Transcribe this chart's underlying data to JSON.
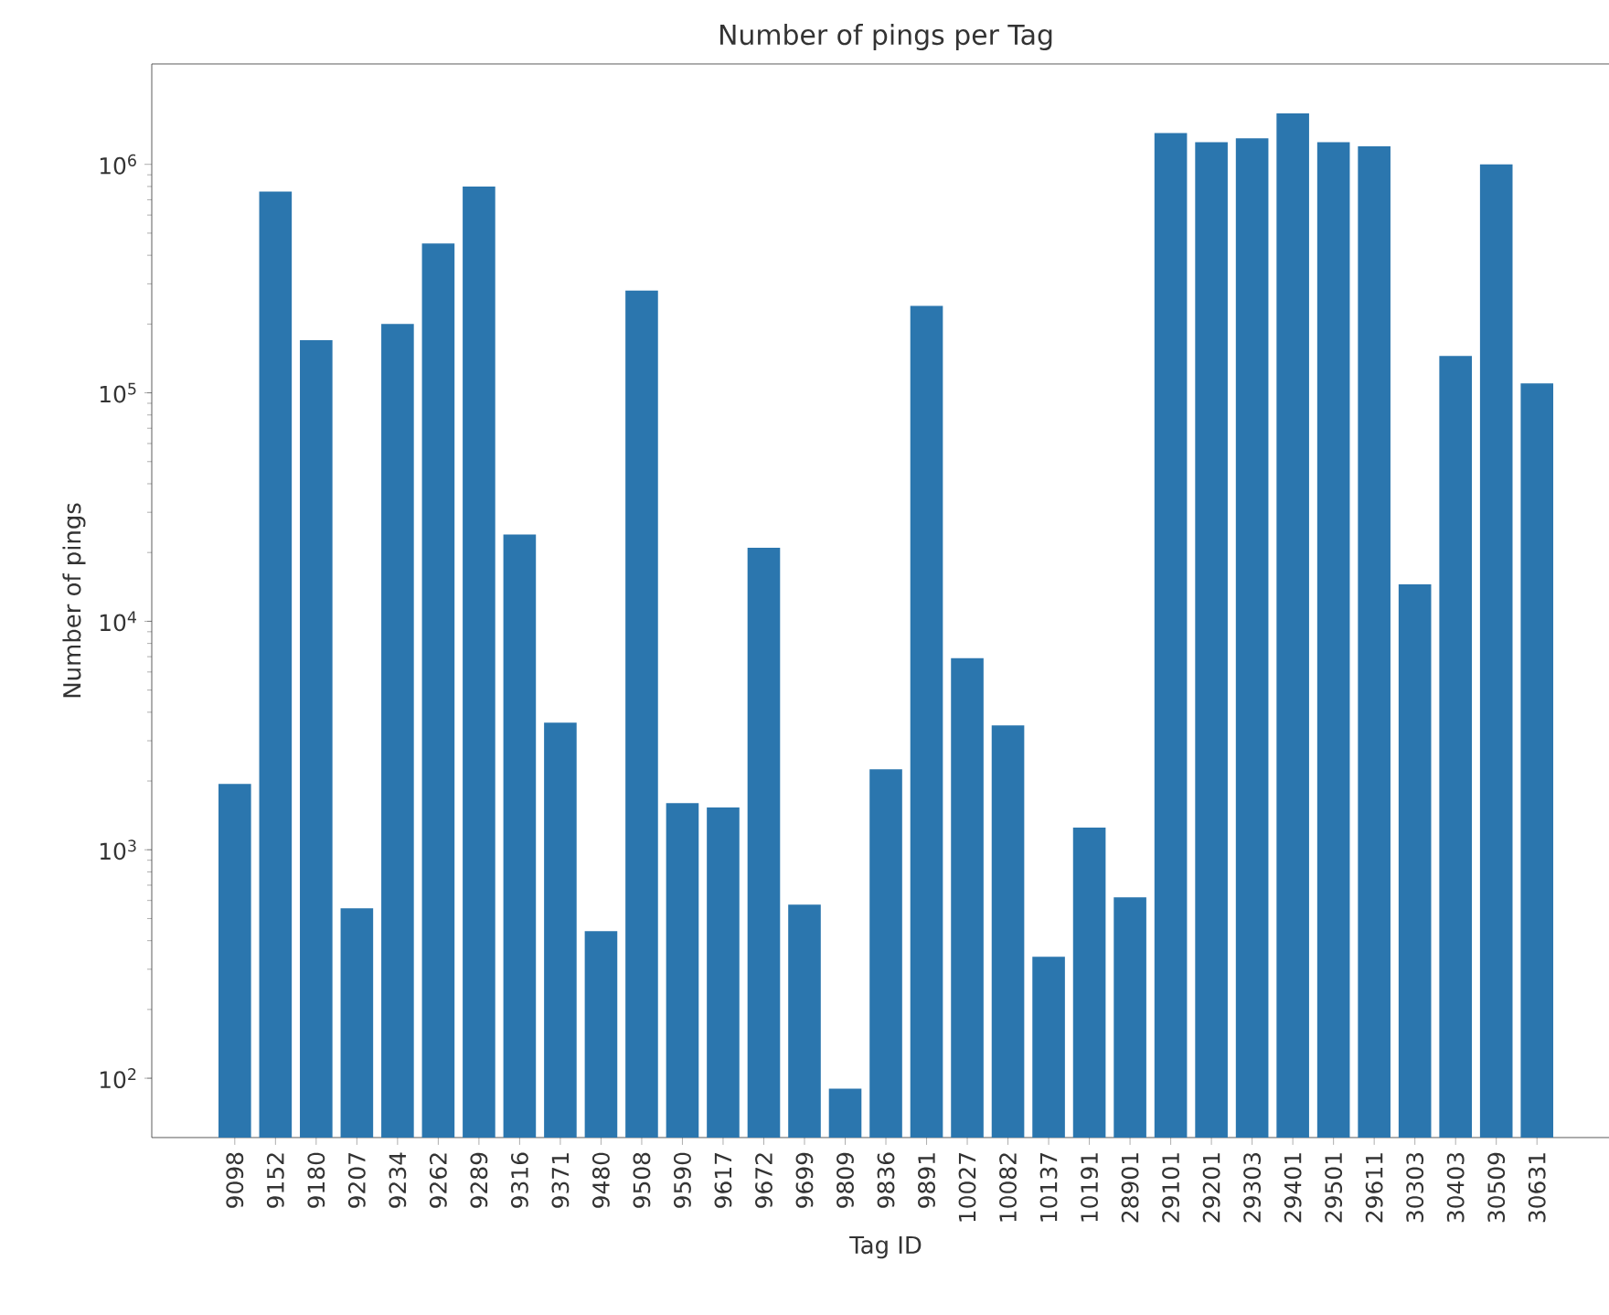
{
  "chart_data": {
    "type": "bar",
    "title": "Number of pings per Tag",
    "xlabel": "Tag ID",
    "ylabel": "Number of pings",
    "categories": [
      "9098",
      "9152",
      "9180",
      "9207",
      "9234",
      "9262",
      "9289",
      "9316",
      "9371",
      "9480",
      "9508",
      "9590",
      "9617",
      "9672",
      "9699",
      "9809",
      "9836",
      "9891",
      "10027",
      "10082",
      "10137",
      "10191",
      "28901",
      "29101",
      "29201",
      "29303",
      "29401",
      "29501",
      "29611",
      "30303",
      "30403",
      "30509",
      "30631"
    ],
    "values": [
      1940,
      760000,
      170000,
      555,
      200000,
      450000,
      800000,
      24000,
      3600,
      440,
      280000,
      1600,
      1530,
      21000,
      575,
      90,
      2250,
      240000,
      6900,
      3500,
      340,
      1250,
      620,
      1370000,
      1250000,
      1300000,
      1670000,
      1250000,
      1200000,
      14500,
      145000,
      1000000,
      110000
    ],
    "color": "#2b76ae",
    "log": "y",
    "ylim": [
      55,
      2750000
    ],
    "yticks": [
      {
        "value": 100,
        "label": "10$^{2}$"
      },
      {
        "value": 1000,
        "label": "10$^{3}$"
      },
      {
        "value": 10000,
        "label": "10$^{4}$"
      },
      {
        "value": 100000,
        "label": "10$^{5}$"
      },
      {
        "value": 1000000,
        "label": "10$^{6}$"
      }
    ],
    "grid": false
  }
}
